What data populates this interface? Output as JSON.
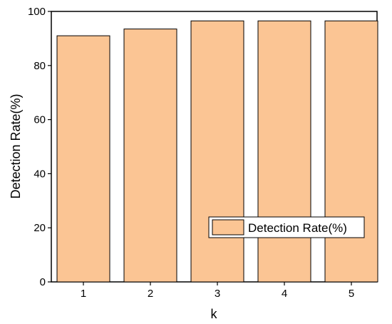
{
  "chart_data": {
    "type": "bar",
    "categories": [
      "1",
      "2",
      "3",
      "4",
      "5"
    ],
    "series": [
      {
        "name": "Detection Rate(%)",
        "values": [
          91,
          93.5,
          96.5,
          96.5,
          96.5
        ]
      }
    ],
    "xlabel": "k",
    "ylabel": "Detection Rate(%)",
    "ylim": [
      0,
      100
    ],
    "yticks": [
      "0",
      "20",
      "40",
      "60",
      "80",
      "100"
    ],
    "grid": false,
    "legend_position": "bottom-right",
    "bar_color": "#FBC594",
    "bar_edge_color": "#000000"
  }
}
